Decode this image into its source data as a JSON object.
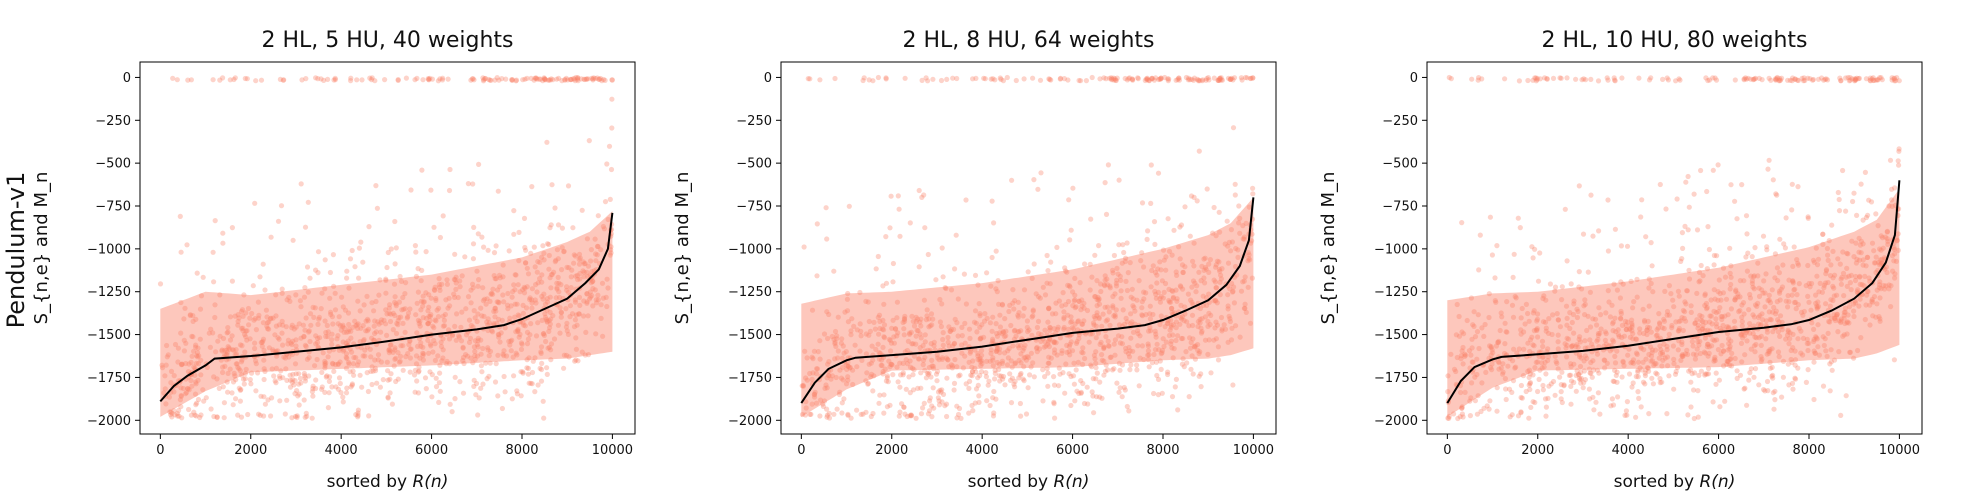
{
  "row_label": "Pendulum-v1",
  "colors": {
    "points": "#fa8068",
    "band": "#fdbdb0",
    "mean_line": "#000000"
  },
  "chart_data": [
    {
      "type": "scatter",
      "title": "2 HL, 5 HU, 40 weights",
      "xlabel_prefix": "sorted by ",
      "xlabel_math": "R(n)",
      "ylabel": "S_{n,e} and M_n",
      "xlim": [
        -450,
        10500
      ],
      "ylim": [
        -2080,
        90
      ],
      "xticks": [
        0,
        2000,
        4000,
        6000,
        8000,
        10000
      ],
      "yticks": [
        0,
        -250,
        -500,
        -750,
        -1000,
        -1250,
        -1500,
        -1750,
        -2000
      ],
      "mean_line": {
        "x": [
          0,
          300,
          600,
          1000,
          1200,
          2000,
          3000,
          4000,
          5000,
          6000,
          7000,
          7600,
          8000,
          8500,
          9000,
          9400,
          9700,
          9900,
          10000
        ],
        "y": [
          -1890,
          -1800,
          -1740,
          -1680,
          -1640,
          -1625,
          -1600,
          -1575,
          -1540,
          -1500,
          -1470,
          -1445,
          -1410,
          -1350,
          -1290,
          -1200,
          -1120,
          -1000,
          -790
        ]
      },
      "band": {
        "x": [
          0,
          1000,
          2000,
          4000,
          6000,
          8000,
          9000,
          9500,
          10000
        ],
        "upper": [
          -1350,
          -1250,
          -1270,
          -1210,
          -1150,
          -1050,
          -960,
          -900,
          -780
        ],
        "lower": [
          -1980,
          -1830,
          -1720,
          -1700,
          -1680,
          -1650,
          -1640,
          -1620,
          -1600
        ]
      }
    },
    {
      "type": "scatter",
      "title": "2 HL, 8 HU, 64 weights",
      "xlabel_prefix": "sorted by ",
      "xlabel_math": "R(n)",
      "ylabel": "S_{n,e} and M_n",
      "xlim": [
        -450,
        10500
      ],
      "ylim": [
        -2080,
        90
      ],
      "xticks": [
        0,
        2000,
        4000,
        6000,
        8000,
        10000
      ],
      "yticks": [
        0,
        -250,
        -500,
        -750,
        -1000,
        -1250,
        -1500,
        -1750,
        -2000
      ],
      "mean_line": {
        "x": [
          0,
          300,
          600,
          1000,
          1200,
          2000,
          3000,
          4000,
          5000,
          6000,
          7000,
          7600,
          8000,
          8500,
          9000,
          9400,
          9700,
          9900,
          10000
        ],
        "y": [
          -1900,
          -1780,
          -1700,
          -1650,
          -1635,
          -1620,
          -1600,
          -1570,
          -1530,
          -1490,
          -1465,
          -1445,
          -1415,
          -1360,
          -1300,
          -1210,
          -1100,
          -950,
          -700
        ]
      },
      "band": {
        "x": [
          0,
          1000,
          2000,
          4000,
          6000,
          8000,
          9000,
          9500,
          10000
        ],
        "upper": [
          -1320,
          -1260,
          -1250,
          -1200,
          -1120,
          -1000,
          -920,
          -850,
          -700
        ],
        "lower": [
          -1980,
          -1820,
          -1710,
          -1700,
          -1690,
          -1650,
          -1640,
          -1620,
          -1580
        ]
      }
    },
    {
      "type": "scatter",
      "title": "2 HL, 10 HU, 80 weights",
      "xlabel_prefix": "sorted by ",
      "xlabel_math": "R(n)",
      "ylabel": "S_{n,e} and M_n",
      "xlim": [
        -450,
        10500
      ],
      "ylim": [
        -2080,
        90
      ],
      "xticks": [
        0,
        2000,
        4000,
        6000,
        8000,
        10000
      ],
      "yticks": [
        0,
        -250,
        -500,
        -750,
        -1000,
        -1250,
        -1500,
        -1750,
        -2000
      ],
      "mean_line": {
        "x": [
          0,
          300,
          600,
          1000,
          1200,
          2000,
          3000,
          4000,
          5000,
          6000,
          7000,
          7600,
          8000,
          8500,
          9000,
          9400,
          9700,
          9900,
          10000
        ],
        "y": [
          -1900,
          -1770,
          -1690,
          -1645,
          -1630,
          -1615,
          -1595,
          -1565,
          -1525,
          -1485,
          -1460,
          -1440,
          -1415,
          -1360,
          -1290,
          -1200,
          -1080,
          -920,
          -600
        ]
      },
      "band": {
        "x": [
          0,
          1000,
          2000,
          4000,
          6000,
          8000,
          9000,
          9500,
          10000
        ],
        "upper": [
          -1300,
          -1260,
          -1250,
          -1190,
          -1110,
          -990,
          -900,
          -830,
          -650
        ],
        "lower": [
          -1980,
          -1810,
          -1710,
          -1700,
          -1690,
          -1650,
          -1640,
          -1610,
          -1560
        ]
      }
    }
  ]
}
